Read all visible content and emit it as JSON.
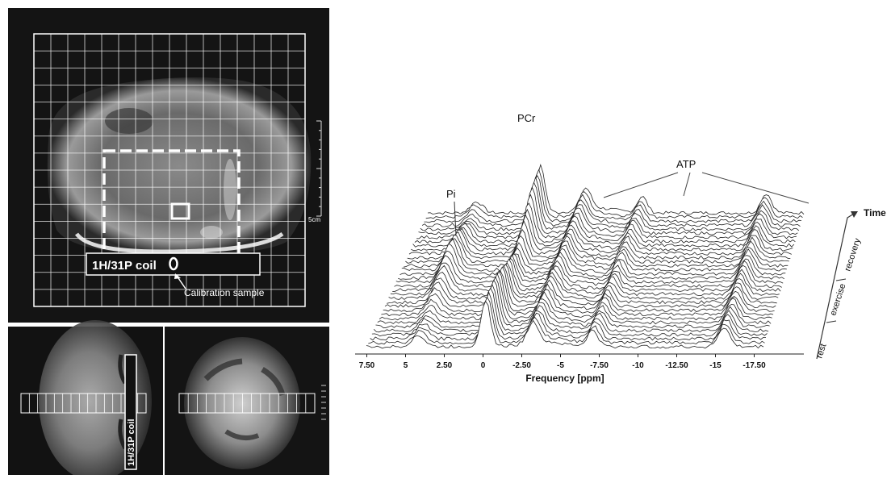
{
  "left": {
    "scale_label": "5cm",
    "coil_label_main": "1H/31P coil",
    "coil_label_vertical": "1H/31P coil",
    "calibration_label": "Calibration sample"
  },
  "spectrum": {
    "peaks": {
      "pi": "Pi",
      "pcr": "PCr",
      "atp": "ATP"
    },
    "xlabel": "Frequency [ppm]",
    "x_ticks": [
      "7.50",
      "5",
      "2.50",
      "0",
      "-2.50",
      "-5",
      "-7.50",
      "-10",
      "-12.50",
      "-15",
      "-17.50"
    ],
    "time_axis": {
      "label": "Time",
      "phases": [
        "rest",
        "exercise",
        "recovery"
      ]
    },
    "colors": {
      "trace": "#222222",
      "image_bg": "#111111",
      "grid": "#ffffff"
    }
  }
}
